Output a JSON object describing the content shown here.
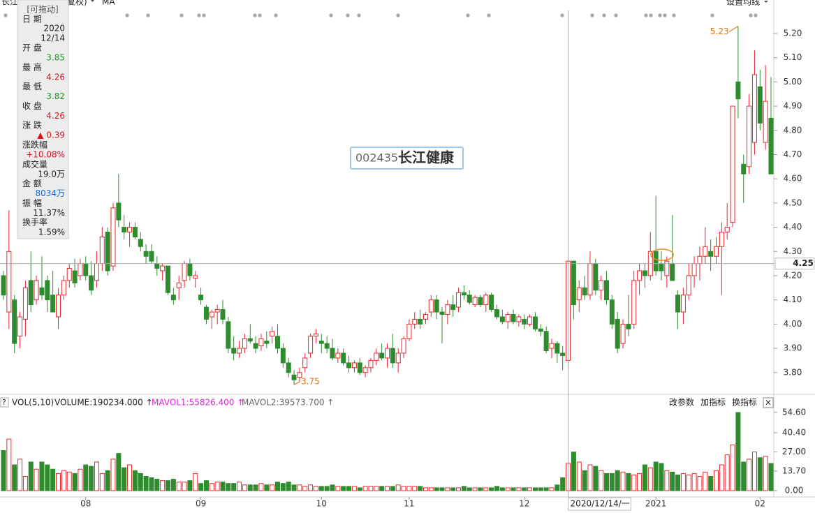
{
  "chart_data": {
    "type": "candlestick",
    "header": {
      "name": "长江",
      "adjust": "复权)",
      "indicator": "MA",
      "settings": "设置均线"
    },
    "code": "002435",
    "stock_name": "长江健康",
    "ylim": [
      3.71,
      5.295
    ],
    "yticks": [
      {
        "value": 3.8,
        "label": "3.80"
      },
      {
        "value": 3.9,
        "label": "3.90"
      },
      {
        "value": 4.0,
        "label": "4.00"
      },
      {
        "value": 4.1,
        "label": "4.10"
      },
      {
        "value": 4.2,
        "label": "4.20"
      },
      {
        "value": 4.3,
        "label": "4.30"
      },
      {
        "value": 4.4,
        "label": "4.40"
      },
      {
        "value": 4.5,
        "label": "4.50"
      },
      {
        "value": 4.6,
        "label": "4.60"
      },
      {
        "value": 4.7,
        "label": "4.70"
      },
      {
        "value": 4.8,
        "label": "4.80"
      },
      {
        "value": 4.9,
        "label": "4.90"
      },
      {
        "value": 5.0,
        "label": "5.00"
      },
      {
        "value": 5.1,
        "label": "5.10"
      },
      {
        "value": 5.2,
        "label": "5.20"
      }
    ],
    "xticks": [
      {
        "value": 15,
        "label": "08"
      },
      {
        "value": 36,
        "label": "09"
      },
      {
        "value": 58,
        "label": "10"
      },
      {
        "value": 74,
        "label": "11"
      },
      {
        "value": 95,
        "label": "12"
      },
      {
        "value": 119,
        "label": "2021"
      },
      {
        "value": 138,
        "label": "02"
      }
    ],
    "up_color": "#e8262e",
    "down_color": "#2e8b2e",
    "candles": [
      [
        4.2,
        4.22,
        4.1,
        4.12
      ],
      [
        4.05,
        4.47,
        3.98,
        4.3
      ],
      [
        4.1,
        4.12,
        3.88,
        3.92
      ],
      [
        3.95,
        4.05,
        3.9,
        4.03
      ],
      [
        4.02,
        4.18,
        3.95,
        4.15
      ],
      [
        4.18,
        4.3,
        4.05,
        4.08
      ],
      [
        4.1,
        4.2,
        4.08,
        4.18
      ],
      [
        4.15,
        4.28,
        4.1,
        4.12
      ],
      [
        4.18,
        4.2,
        4.05,
        4.1
      ],
      [
        4.12,
        4.22,
        4.05,
        4.05
      ],
      [
        4.03,
        4.15,
        3.98,
        4.12
      ],
      [
        4.12,
        4.2,
        4.1,
        4.18
      ],
      [
        4.18,
        4.25,
        4.15,
        4.23
      ],
      [
        4.22,
        4.27,
        4.15,
        4.17
      ],
      [
        4.2,
        4.27,
        4.18,
        4.25
      ],
      [
        4.25,
        4.28,
        4.18,
        4.2
      ],
      [
        4.2,
        4.26,
        4.12,
        4.14
      ],
      [
        4.18,
        4.3,
        4.15,
        4.25
      ],
      [
        4.25,
        4.4,
        4.22,
        4.36
      ],
      [
        4.38,
        4.4,
        4.2,
        4.22
      ],
      [
        4.24,
        4.5,
        4.22,
        4.48
      ],
      [
        4.5,
        4.62,
        4.4,
        4.43
      ],
      [
        4.4,
        4.45,
        4.35,
        4.38
      ],
      [
        4.38,
        4.42,
        4.32,
        4.4
      ],
      [
        4.4,
        4.42,
        4.35,
        4.36
      ],
      [
        4.35,
        4.38,
        4.3,
        4.32
      ],
      [
        4.3,
        4.33,
        4.25,
        4.28
      ],
      [
        4.3,
        4.33,
        4.25,
        4.26
      ],
      [
        4.25,
        4.28,
        4.2,
        4.23
      ],
      [
        4.22,
        4.25,
        4.18,
        4.24
      ],
      [
        4.24,
        4.24,
        4.12,
        4.13
      ],
      [
        4.12,
        4.15,
        4.08,
        4.1
      ],
      [
        4.15,
        4.2,
        4.1,
        4.17
      ],
      [
        4.18,
        4.26,
        4.15,
        4.25
      ],
      [
        4.25,
        4.27,
        4.18,
        4.2
      ],
      [
        4.19,
        4.22,
        4.15,
        4.2
      ],
      [
        4.12,
        4.15,
        4.08,
        4.1
      ],
      [
        4.07,
        4.08,
        4.0,
        4.02
      ],
      [
        4.03,
        4.06,
        3.98,
        4.05
      ],
      [
        4.05,
        4.08,
        4.0,
        4.06
      ],
      [
        4.06,
        4.1,
        4.0,
        4.02
      ],
      [
        4.01,
        4.03,
        3.88,
        3.9
      ],
      [
        3.9,
        3.95,
        3.85,
        3.88
      ],
      [
        3.88,
        3.93,
        3.86,
        3.9
      ],
      [
        3.9,
        3.96,
        3.88,
        3.94
      ],
      [
        3.94,
        4.0,
        3.92,
        3.93
      ],
      [
        3.92,
        3.95,
        3.88,
        3.9
      ],
      [
        3.91,
        3.96,
        3.89,
        3.94
      ],
      [
        3.93,
        3.97,
        3.9,
        3.92
      ],
      [
        3.95,
        3.99,
        3.92,
        3.97
      ],
      [
        3.95,
        4.0,
        3.88,
        3.9
      ],
      [
        3.9,
        3.92,
        3.82,
        3.84
      ],
      [
        3.84,
        3.86,
        3.78,
        3.8
      ],
      [
        3.79,
        3.81,
        3.75,
        3.77
      ],
      [
        3.78,
        3.82,
        3.76,
        3.8
      ],
      [
        3.82,
        3.88,
        3.8,
        3.86
      ],
      [
        3.88,
        3.96,
        3.86,
        3.95
      ],
      [
        3.95,
        3.98,
        3.92,
        3.96
      ],
      [
        3.93,
        3.96,
        3.88,
        3.92
      ],
      [
        3.92,
        3.95,
        3.88,
        3.9
      ],
      [
        3.9,
        3.94,
        3.85,
        3.86
      ],
      [
        3.86,
        3.9,
        3.84,
        3.88
      ],
      [
        3.88,
        3.9,
        3.83,
        3.84
      ],
      [
        3.84,
        3.87,
        3.8,
        3.82
      ],
      [
        3.82,
        3.85,
        3.8,
        3.84
      ],
      [
        3.84,
        3.86,
        3.79,
        3.8
      ],
      [
        3.8,
        3.83,
        3.78,
        3.82
      ],
      [
        3.82,
        3.86,
        3.8,
        3.85
      ],
      [
        3.85,
        3.9,
        3.83,
        3.88
      ],
      [
        3.88,
        3.92,
        3.85,
        3.86
      ],
      [
        3.86,
        3.92,
        3.82,
        3.9
      ],
      [
        3.9,
        3.96,
        3.82,
        3.84
      ],
      [
        3.84,
        3.9,
        3.8,
        3.88
      ],
      [
        3.88,
        3.95,
        3.86,
        3.94
      ],
      [
        3.94,
        4.02,
        3.93,
        4.0
      ],
      [
        4.0,
        4.05,
        3.98,
        4.02
      ],
      [
        4.02,
        4.06,
        3.98,
        4.0
      ],
      [
        4.02,
        4.05,
        4.0,
        4.04
      ],
      [
        4.05,
        4.12,
        4.03,
        4.1
      ],
      [
        4.1,
        4.12,
        4.02,
        4.05
      ],
      [
        4.05,
        4.07,
        3.92,
        4.04
      ],
      [
        4.04,
        4.1,
        4.0,
        4.08
      ],
      [
        4.08,
        4.12,
        4.03,
        4.06
      ],
      [
        4.07,
        4.15,
        4.05,
        4.13
      ],
      [
        4.13,
        4.16,
        4.1,
        4.12
      ],
      [
        4.12,
        4.14,
        4.08,
        4.09
      ],
      [
        4.08,
        4.12,
        4.07,
        4.11
      ],
      [
        4.11,
        4.12,
        4.07,
        4.08
      ],
      [
        4.08,
        4.13,
        4.05,
        4.12
      ],
      [
        4.12,
        4.13,
        4.05,
        4.06
      ],
      [
        4.06,
        4.08,
        4.02,
        4.03
      ],
      [
        4.03,
        4.06,
        4.0,
        4.01
      ],
      [
        4.01,
        4.05,
        3.98,
        4.04
      ],
      [
        4.04,
        4.06,
        4.0,
        4.01
      ],
      [
        4.01,
        4.04,
        3.99,
        4.03
      ],
      [
        4.02,
        4.04,
        3.98,
        4.0
      ],
      [
        4.0,
        4.04,
        3.99,
        4.03
      ],
      [
        4.03,
        4.05,
        3.97,
        3.98
      ],
      [
        3.98,
        4.0,
        3.95,
        3.97
      ],
      [
        3.97,
        3.99,
        3.88,
        3.89
      ],
      [
        3.9,
        3.94,
        3.86,
        3.92
      ],
      [
        3.92,
        3.93,
        3.84,
        3.88
      ],
      [
        3.88,
        3.91,
        3.81,
        3.87
      ],
      [
        3.85,
        4.26,
        3.82,
        4.26
      ],
      [
        4.26,
        4.26,
        4.02,
        4.08
      ],
      [
        4.1,
        4.18,
        4.05,
        4.15
      ],
      [
        4.15,
        4.2,
        4.1,
        4.12
      ],
      [
        4.12,
        4.3,
        4.1,
        4.25
      ],
      [
        4.25,
        4.27,
        4.12,
        4.14
      ],
      [
        4.14,
        4.2,
        4.1,
        4.18
      ],
      [
        4.18,
        4.22,
        4.08,
        4.1
      ],
      [
        4.1,
        4.12,
        3.98,
        4.0
      ],
      [
        4.02,
        4.05,
        3.88,
        3.9
      ],
      [
        3.92,
        4.02,
        3.9,
        4.0
      ],
      [
        4.0,
        4.12,
        3.95,
        3.98
      ],
      [
        4.0,
        4.22,
        3.98,
        4.18
      ],
      [
        4.18,
        4.25,
        4.12,
        4.22
      ],
      [
        4.22,
        4.25,
        4.15,
        4.2
      ],
      [
        4.2,
        4.38,
        4.18,
        4.3
      ],
      [
        4.3,
        4.53,
        4.2,
        4.22
      ],
      [
        4.25,
        4.3,
        4.18,
        4.22
      ],
      [
        4.2,
        4.28,
        4.15,
        4.26
      ],
      [
        4.25,
        4.45,
        4.18,
        4.18
      ],
      [
        4.12,
        4.14,
        3.98,
        4.05
      ],
      [
        4.05,
        4.15,
        4.0,
        4.12
      ],
      [
        4.12,
        4.25,
        4.1,
        4.2
      ],
      [
        4.2,
        4.28,
        4.15,
        4.25
      ],
      [
        4.25,
        4.32,
        4.18,
        4.28
      ],
      [
        4.28,
        4.4,
        4.25,
        4.32
      ],
      [
        4.3,
        4.35,
        4.22,
        4.28
      ],
      [
        4.28,
        4.36,
        4.25,
        4.32
      ],
      [
        4.32,
        4.42,
        4.12,
        4.38
      ],
      [
        4.38,
        4.5,
        4.35,
        4.4
      ],
      [
        4.42,
        4.9,
        4.4,
        4.9
      ],
      [
        5.0,
        5.23,
        4.85,
        4.93
      ],
      [
        4.66,
        4.7,
        4.5,
        4.62
      ],
      [
        4.65,
        4.95,
        4.62,
        4.9
      ],
      [
        4.75,
        5.13,
        4.7,
        5.03
      ],
      [
        4.98,
        5.05,
        4.8,
        4.83
      ],
      [
        4.75,
        5.07,
        4.72,
        4.92
      ],
      [
        4.85,
        5.02,
        4.62,
        4.62
      ]
    ],
    "volume": [
      28,
      36,
      18,
      22,
      10,
      20,
      15,
      20,
      18,
      15,
      12,
      14,
      13,
      12,
      15,
      18,
      17,
      20,
      12,
      14,
      22,
      26,
      16,
      18,
      14,
      12,
      10,
      9,
      8,
      7,
      7,
      8,
      6,
      6,
      7,
      12,
      5,
      7,
      5,
      6,
      6,
      5,
      5,
      6,
      4,
      4,
      4,
      5,
      4,
      4,
      6,
      5,
      6,
      4,
      4,
      3,
      4,
      3,
      3,
      3,
      4,
      3,
      3,
      3,
      3,
      2,
      3,
      3,
      3,
      3,
      3,
      3,
      4,
      3,
      3,
      3,
      3,
      2,
      2,
      2,
      2,
      2,
      2,
      2,
      3,
      2,
      2,
      2,
      2,
      2,
      3,
      2,
      2,
      2,
      2,
      2,
      2,
      2,
      2,
      2,
      2,
      4,
      9,
      19,
      27,
      20,
      14,
      18,
      17,
      14,
      12,
      12,
      14,
      13,
      12,
      11,
      12,
      18,
      16,
      20,
      19,
      14,
      13,
      11,
      12,
      11,
      12,
      10,
      13,
      10,
      14,
      18,
      25,
      32,
      54.6,
      20,
      22,
      27,
      23,
      24,
      19
    ],
    "vol_ylim": [
      0,
      57.5
    ],
    "vol_yticks": [
      {
        "value": 0,
        "label": "0.00"
      },
      {
        "value": 13.7,
        "label": "13.70"
      },
      {
        "value": 27,
        "label": "27.00"
      },
      {
        "value": 40.4,
        "label": "40.40"
      },
      {
        "value": 54.6,
        "label": "54.60"
      }
    ],
    "vol_header": {
      "help": "?",
      "indicator": "VOL(5,10)",
      "volume": "VOLUME:190234.000 ↑",
      "mavol1": "MAVOL1:55826.400 ↑",
      "mavol2": "MAVOL2:39573.700 ↑",
      "mavol1_color": "#e020e0",
      "mavol2_color": "#666666"
    },
    "buttons": [
      "改参数",
      "加指标",
      "换指标"
    ],
    "close": "×",
    "annotations": [
      {
        "index": 134,
        "value": 5.23,
        "label": "5.23"
      },
      {
        "index": 53,
        "value": 3.75,
        "label": "3.75"
      }
    ],
    "crosshair": {
      "index": 103,
      "price": {
        "value": 4.25,
        "label": "4.25"
      },
      "date": "2020/12/14/一"
    },
    "panel": {
      "title": "[可拖动]",
      "date_label": "日 期",
      "date_year": "2020",
      "date_day": "12/14",
      "rows": [
        {
          "label": "开 盘",
          "value": "3.85",
          "color": "#1a9a1a"
        },
        {
          "label": "最 高",
          "value": "4.26",
          "color": "#e0101a"
        },
        {
          "label": "最 低",
          "value": "3.82",
          "color": "#1a9a1a"
        },
        {
          "label": "收 盘",
          "value": "4.26",
          "color": "#e0101a"
        },
        {
          "label": "涨 跌",
          "value": "▲ 0.39",
          "color": "#e0101a"
        },
        {
          "label": "涨跌幅",
          "value": "+10.08%",
          "color": "#e0101a"
        },
        {
          "label": "成交量",
          "value": "19.0万",
          "color": "#222222"
        },
        {
          "label": "金 额",
          "value": "8034万",
          "color": "#1a6ad0"
        },
        {
          "label": "振 幅",
          "value": "11.37%",
          "color": "#222222"
        },
        {
          "label": "换手率",
          "value": "1.59%",
          "color": "#222222"
        }
      ]
    }
  }
}
